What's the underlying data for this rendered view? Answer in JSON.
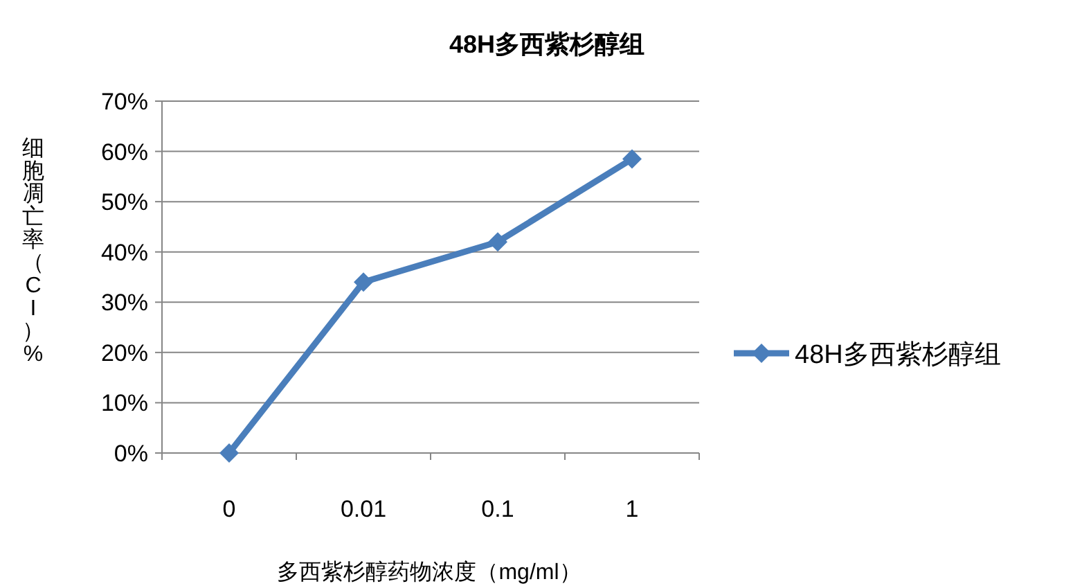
{
  "chart_data": {
    "type": "line",
    "title": "48H多西紫杉醇组",
    "xlabel": "多西紫杉醇药物浓度（mg/ml）",
    "ylabel": "细胞凋亡率（CI）%",
    "categories": [
      "0",
      "0.01",
      "0.1",
      "1"
    ],
    "series": [
      {
        "name": "48H多西紫杉醇组",
        "color": "#4a7ebb",
        "values": [
          0,
          34,
          42,
          58.5
        ]
      }
    ],
    "ylim": [
      0,
      70
    ],
    "yticks": [
      {
        "value": 0,
        "label": "0%"
      },
      {
        "value": 10,
        "label": "10%"
      },
      {
        "value": 20,
        "label": "20%"
      },
      {
        "value": 30,
        "label": "30%"
      },
      {
        "value": 40,
        "label": "40%"
      },
      {
        "value": 50,
        "label": "50%"
      },
      {
        "value": 60,
        "label": "60%"
      },
      {
        "value": 70,
        "label": "70%"
      }
    ],
    "grid": "y",
    "legend": "right",
    "marker": "diamond",
    "line_style": "solid"
  }
}
